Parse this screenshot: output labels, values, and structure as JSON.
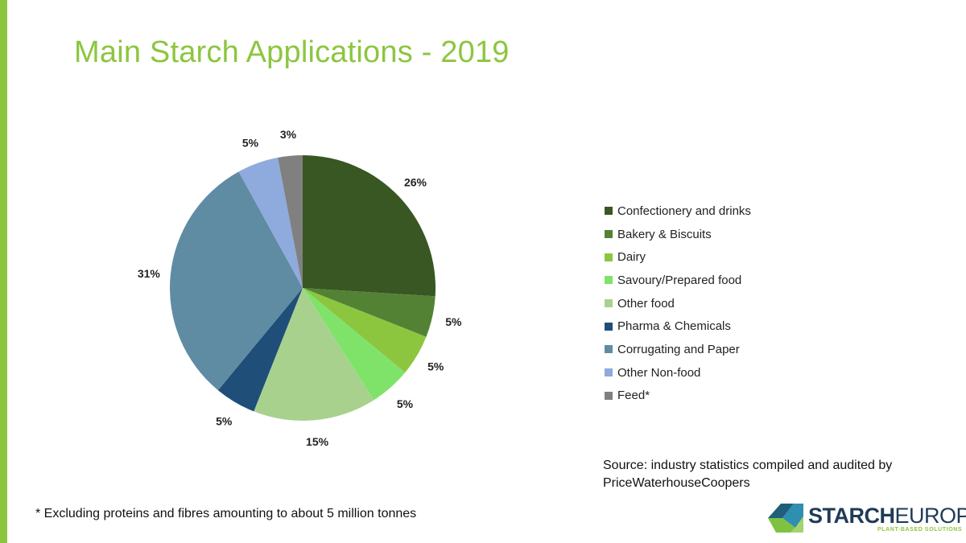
{
  "title": "Main Starch Applications - 2019",
  "chart_data": {
    "type": "pie",
    "title": "Main Starch Applications - 2019",
    "categories": [
      "Confectionery and drinks",
      "Bakery & Biscuits",
      "Dairy",
      "Savoury/Prepared food",
      "Other food",
      "Pharma & Chemicals",
      "Corrugating and Paper",
      "Other Non-food",
      "Feed*"
    ],
    "values": [
      26,
      5,
      5,
      5,
      15,
      5,
      31,
      5,
      3
    ],
    "labels": [
      "26%",
      "5%",
      "5%",
      "5%",
      "15%",
      "5%",
      "31%",
      "5%",
      "3%"
    ],
    "colors": [
      "#385723",
      "#548235",
      "#8cc63f",
      "#7fe36a",
      "#a9d18e",
      "#1f4e79",
      "#5f8ca3",
      "#8faadc",
      "#808080"
    ],
    "legend_position": "right"
  },
  "source": "Source: industry statistics compiled and audited by PriceWaterhouseCoopers",
  "footnote": "* Excluding proteins and fibres amounting to about 5 million tonnes",
  "logo": {
    "bold": "STARCH",
    "light": "EUROPE",
    "tagline": "PLANT-BASED SOLUTIONS"
  },
  "accent_color": "#8cc63f"
}
